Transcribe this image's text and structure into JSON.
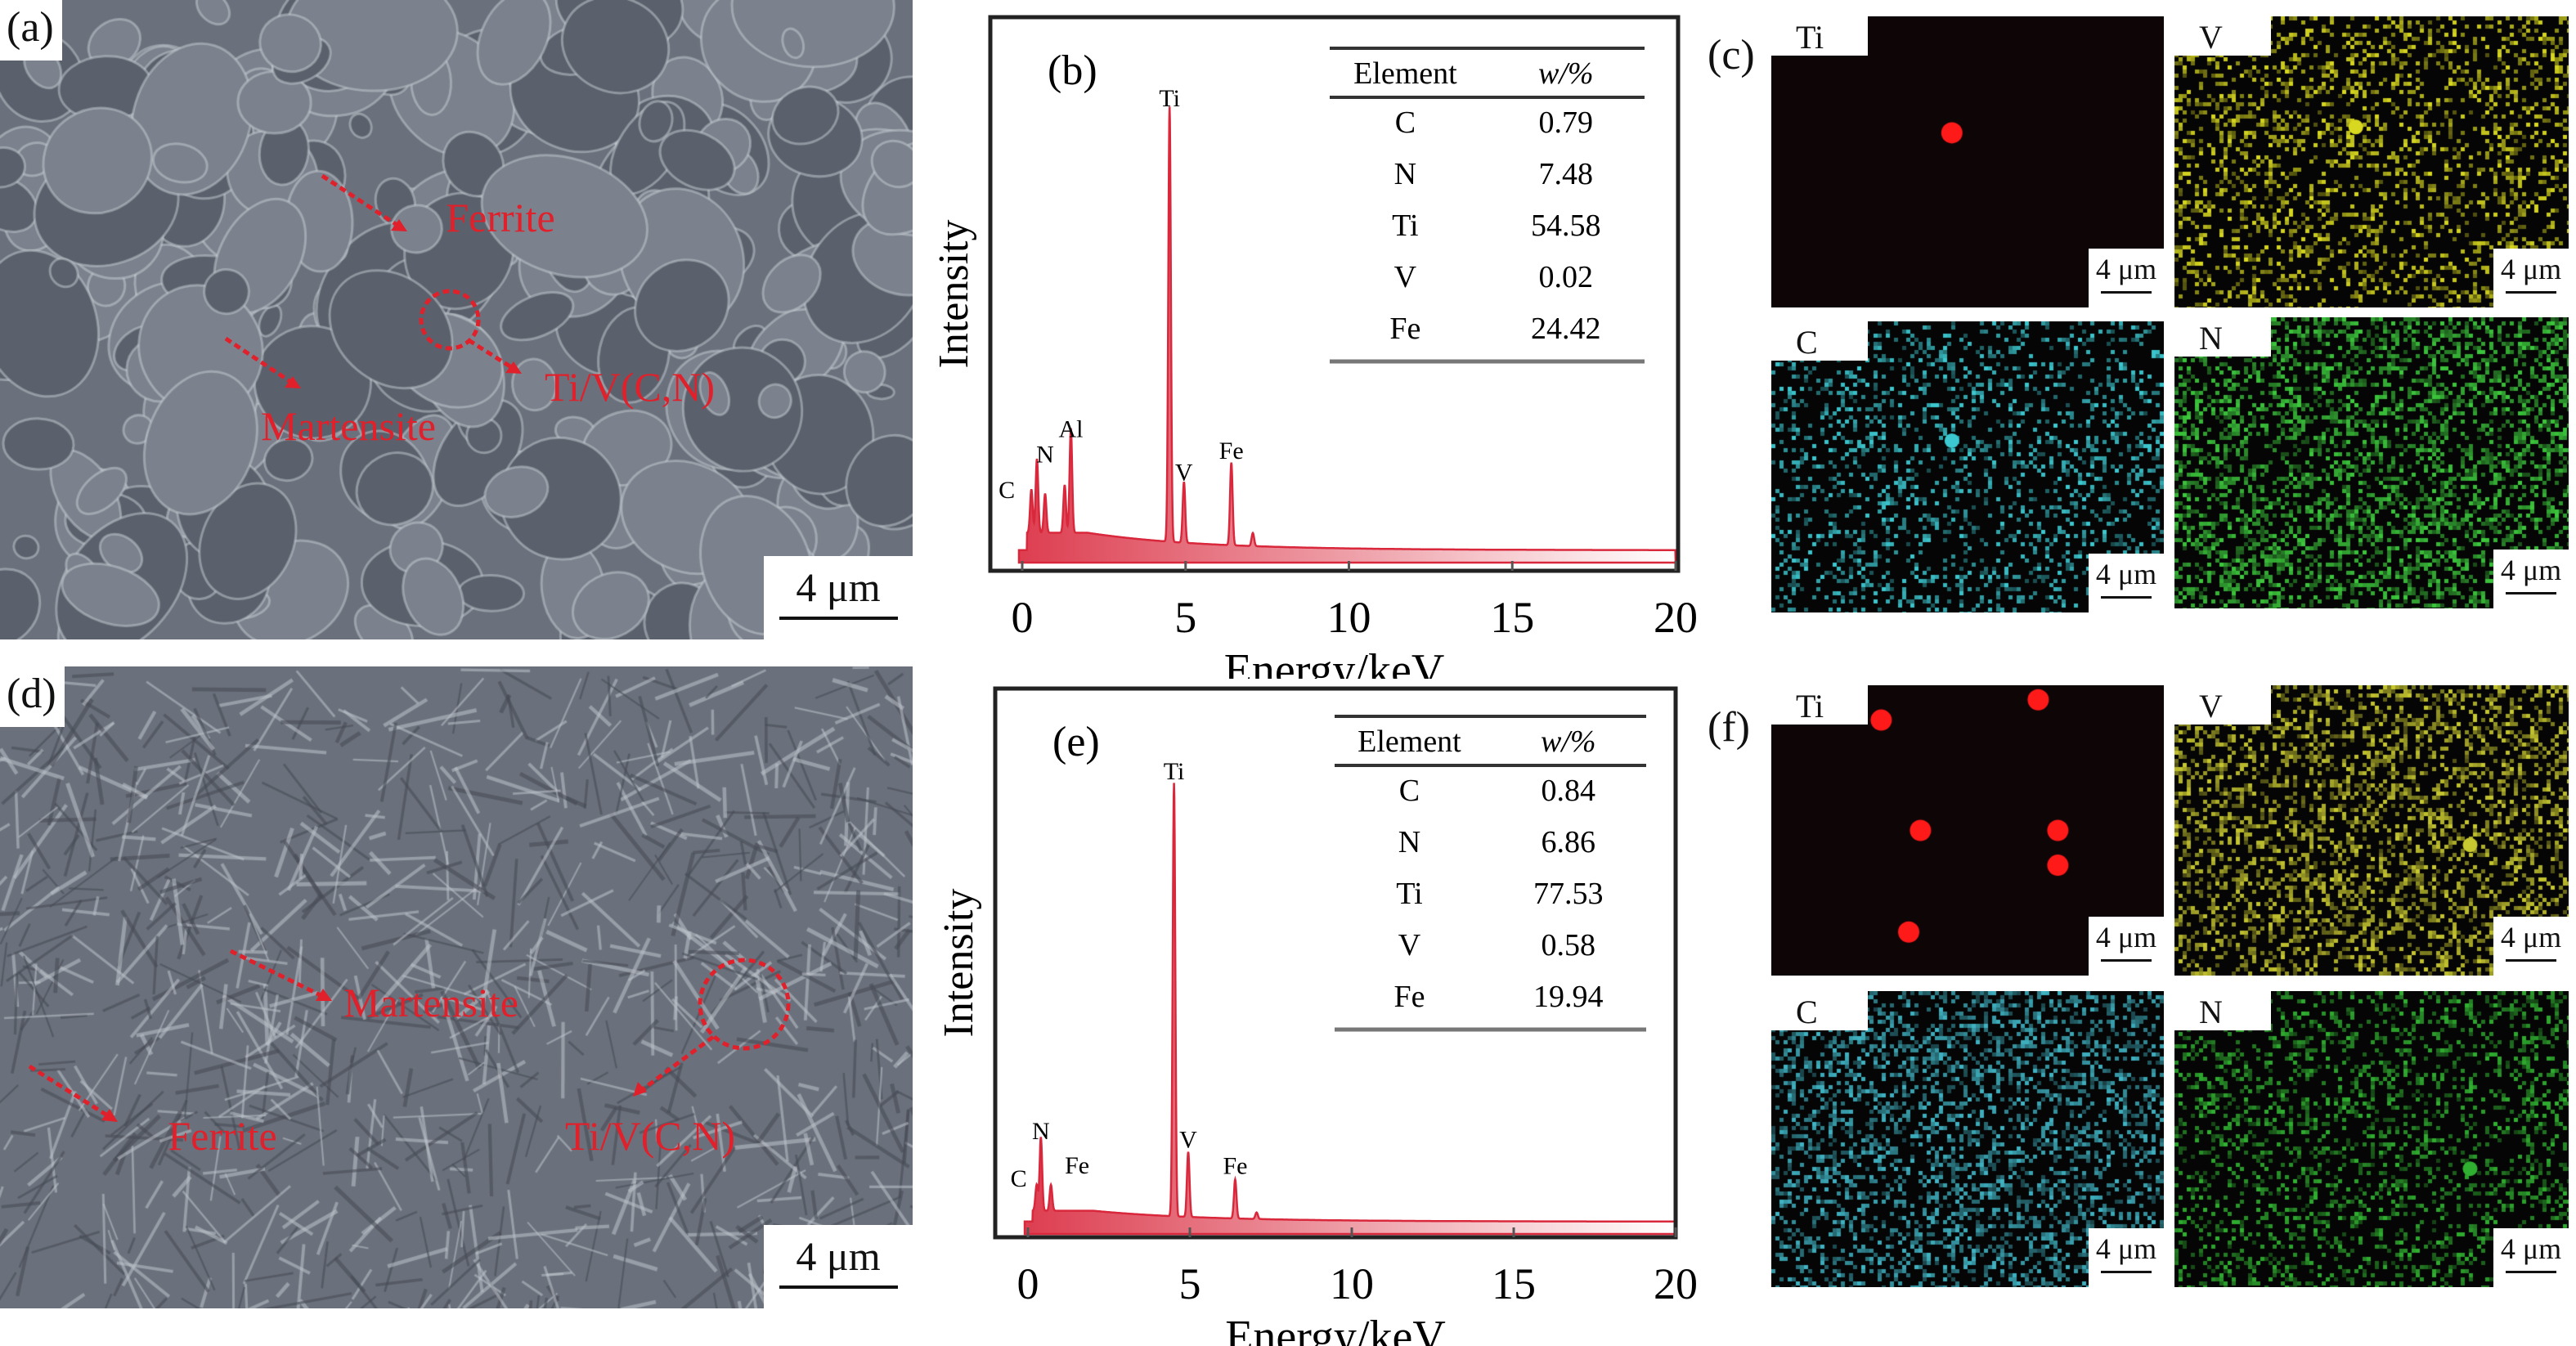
{
  "panels": {
    "a": {
      "label": "(a)",
      "scale_bar": "4 μm",
      "texture": "ferrite_martensite",
      "annotations": [
        {
          "text": "Ferrite"
        },
        {
          "text": "Martensite"
        },
        {
          "text": "Ti/V(C,N)"
        }
      ]
    },
    "d": {
      "label": "(d)",
      "scale_bar": "4 μm",
      "texture": "lath_martensite",
      "annotations": [
        {
          "text": "Martensite"
        },
        {
          "text": "Ferrite"
        },
        {
          "text": "Ti/V(C,N)"
        }
      ]
    },
    "c": {
      "label": "(c)",
      "maps": [
        {
          "element": "Ti",
          "scale_bar": "4 μm",
          "color": "#ff1a1a",
          "density": 0.0,
          "hotspots": [
            [
              0.46,
              0.4
            ]
          ]
        },
        {
          "element": "V",
          "scale_bar": "4 μm",
          "color": "#d8d820",
          "density": 0.35,
          "hotspots": [
            [
              0.46,
              0.38
            ]
          ]
        },
        {
          "element": "C",
          "scale_bar": "4 μm",
          "color": "#3cc8d0",
          "density": 0.3,
          "hotspots": [
            [
              0.46,
              0.41
            ]
          ]
        },
        {
          "element": "N",
          "scale_bar": "4 μm",
          "color": "#3cc83c",
          "density": 0.5,
          "hotspots": []
        }
      ]
    },
    "f": {
      "label": "(f)",
      "maps": [
        {
          "element": "Ti",
          "scale_bar": "4 μm",
          "color": "#ff1a1a",
          "density": 0.0,
          "hotspots": [
            [
              0.73,
              0.5
            ],
            [
              0.73,
              0.62
            ],
            [
              0.28,
              0.12
            ],
            [
              0.38,
              0.5
            ],
            [
              0.35,
              0.85
            ],
            [
              0.68,
              0.05
            ]
          ]
        },
        {
          "element": "V",
          "scale_bar": "4 μm",
          "color": "#c8c830",
          "density": 0.45,
          "hotspots": [
            [
              0.75,
              0.55
            ]
          ]
        },
        {
          "element": "C",
          "scale_bar": "4 μm",
          "color": "#40b4c4",
          "density": 0.45,
          "hotspots": []
        },
        {
          "element": "N",
          "scale_bar": "4 μm",
          "color": "#30b030",
          "density": 0.35,
          "hotspots": [
            [
              0.75,
              0.6
            ]
          ]
        }
      ]
    }
  },
  "colors": {
    "spectrum": "#d9283c",
    "annotation": "#e0202a"
  },
  "chart_data": [
    {
      "type": "line",
      "panel_label": "(b)",
      "xlabel": "Energy/keV",
      "ylabel": "Intensity",
      "xlim": [
        0,
        20
      ],
      "ylim": [
        0,
        105
      ],
      "xticks": [
        "0",
        "5",
        "10",
        "15",
        "20"
      ],
      "peaks": [
        {
          "label": "C",
          "energy": 0.28,
          "height": 10
        },
        {
          "label": "N",
          "energy": 0.45,
          "height": 17
        },
        {
          "label": "",
          "energy": 0.7,
          "height": 9
        },
        {
          "label": "",
          "energy": 1.3,
          "height": 11
        },
        {
          "label": "Al",
          "energy": 1.49,
          "height": 24
        },
        {
          "label": "Ti",
          "energy": 4.51,
          "height": 100
        },
        {
          "label": "V",
          "energy": 4.95,
          "height": 14
        },
        {
          "label": "Fe",
          "energy": 6.4,
          "height": 19
        },
        {
          "label": "",
          "energy": 7.06,
          "height": 3
        }
      ],
      "background": 4,
      "table": {
        "headers": [
          "Element",
          "w/%"
        ],
        "rows": [
          [
            "C",
            "0.79"
          ],
          [
            "N",
            "7.48"
          ],
          [
            "Ti",
            "54.58"
          ],
          [
            "V",
            "0.02"
          ],
          [
            "Fe",
            "24.42"
          ]
        ]
      }
    },
    {
      "type": "line",
      "panel_label": "(e)",
      "xlabel": "Energy/keV",
      "ylabel": "Intensity",
      "xlim": [
        0,
        20
      ],
      "ylim": [
        0,
        105
      ],
      "xticks": [
        "0",
        "5",
        "10",
        "15",
        "20"
      ],
      "peaks": [
        {
          "label": "C",
          "energy": 0.27,
          "height": 6
        },
        {
          "label": "N",
          "energy": 0.4,
          "height": 17
        },
        {
          "label": "Fe",
          "energy": 0.71,
          "height": 6
        },
        {
          "label": "Ti",
          "energy": 4.51,
          "height": 100
        },
        {
          "label": "V",
          "energy": 4.95,
          "height": 15
        },
        {
          "label": "Fe",
          "energy": 6.4,
          "height": 9
        },
        {
          "label": "",
          "energy": 7.06,
          "height": 1.5
        }
      ],
      "background": 2.5,
      "table": {
        "headers": [
          "Element",
          "w/%"
        ],
        "rows": [
          [
            "C",
            "0.84"
          ],
          [
            "N",
            "6.86"
          ],
          [
            "Ti",
            "77.53"
          ],
          [
            "V",
            "0.58"
          ],
          [
            "Fe",
            "19.94"
          ]
        ]
      }
    }
  ]
}
